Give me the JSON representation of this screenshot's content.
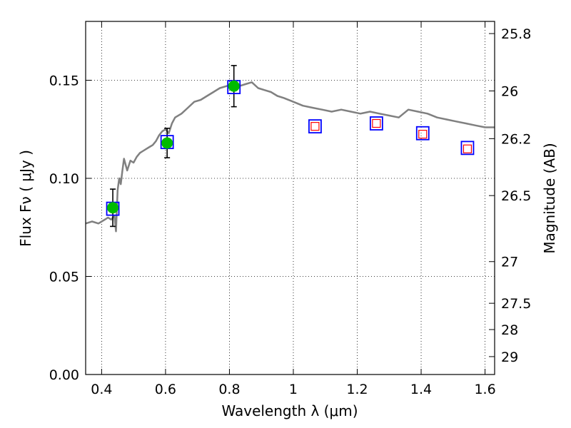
{
  "chart_data": {
    "type": "scatter",
    "title": "",
    "xlabel": "Wavelength  λ (μm)",
    "ylabel": "Flux  Fν  ( μJy )",
    "y2label": "Magnitude (AB)",
    "xlim": [
      0.35,
      1.63
    ],
    "ylim": [
      0.0,
      0.18
    ],
    "grid": true,
    "x_ticks": [
      0.4,
      0.6,
      0.8,
      1.0,
      1.2,
      1.4,
      1.6
    ],
    "x_tick_labels": [
      "0.4",
      "0.6",
      "0.8",
      "1",
      "1.2",
      "1.4",
      "1.6"
    ],
    "y_ticks": [
      0.0,
      0.05,
      0.1,
      0.15
    ],
    "y_tick_labels": [
      "0.00",
      "0.05",
      "0.10",
      "0.15"
    ],
    "mag_ticks": [
      25.8,
      26,
      26.2,
      26.5,
      27,
      27.5,
      28,
      29
    ],
    "mag_tick_labels": [
      "25.8",
      "26",
      "26.2",
      "26.5",
      "27",
      "27.5",
      "28",
      "29"
    ],
    "series": [
      {
        "marker": "line",
        "color": "#808080",
        "x": [
          0.35,
          0.37,
          0.39,
          0.41,
          0.42,
          0.43,
          0.44,
          0.445,
          0.45,
          0.455,
          0.46,
          0.465,
          0.47,
          0.48,
          0.49,
          0.5,
          0.51,
          0.52,
          0.53,
          0.54,
          0.55,
          0.56,
          0.57,
          0.58,
          0.59,
          0.6,
          0.61,
          0.62,
          0.63,
          0.65,
          0.67,
          0.69,
          0.71,
          0.73,
          0.75,
          0.77,
          0.79,
          0.81,
          0.83,
          0.85,
          0.87,
          0.89,
          0.91,
          0.93,
          0.95,
          0.97,
          1.0,
          1.03,
          1.06,
          1.09,
          1.12,
          1.15,
          1.18,
          1.21,
          1.24,
          1.27,
          1.3,
          1.33,
          1.36,
          1.39,
          1.42,
          1.45,
          1.48,
          1.51,
          1.54,
          1.57,
          1.6,
          1.63
        ],
        "y": [
          0.077,
          0.078,
          0.077,
          0.079,
          0.08,
          0.079,
          0.081,
          0.073,
          0.094,
          0.1,
          0.097,
          0.104,
          0.11,
          0.104,
          0.109,
          0.108,
          0.111,
          0.113,
          0.114,
          0.115,
          0.116,
          0.117,
          0.119,
          0.122,
          0.124,
          0.125,
          0.123,
          0.128,
          0.131,
          0.133,
          0.136,
          0.139,
          0.14,
          0.142,
          0.144,
          0.146,
          0.147,
          0.148,
          0.147,
          0.148,
          0.149,
          0.146,
          0.145,
          0.144,
          0.142,
          0.141,
          0.139,
          0.137,
          0.136,
          0.135,
          0.134,
          0.135,
          0.134,
          0.133,
          0.134,
          0.133,
          0.132,
          0.131,
          0.135,
          0.134,
          0.133,
          0.131,
          0.13,
          0.129,
          0.128,
          0.127,
          0.126,
          0.126
        ]
      },
      {
        "marker": "filled-circle",
        "color": "#00bb00",
        "x": [
          0.435,
          0.605,
          0.814
        ],
        "y": [
          0.085,
          0.118,
          0.147
        ],
        "yerr": [
          0.0095,
          0.0075,
          0.0105
        ]
      },
      {
        "marker": "open-square",
        "color": "#0000ff",
        "x": [
          0.435,
          0.605,
          0.814,
          1.068,
          1.26,
          1.405,
          1.545
        ],
        "y": [
          0.0845,
          0.1185,
          0.1465,
          0.1265,
          0.128,
          0.123,
          0.1155
        ]
      },
      {
        "marker": "open-square-small",
        "color": "#ff0000",
        "x": [
          1.068,
          1.26,
          1.405,
          1.545
        ],
        "y": [
          0.1265,
          0.128,
          0.1225,
          0.115
        ]
      }
    ]
  }
}
